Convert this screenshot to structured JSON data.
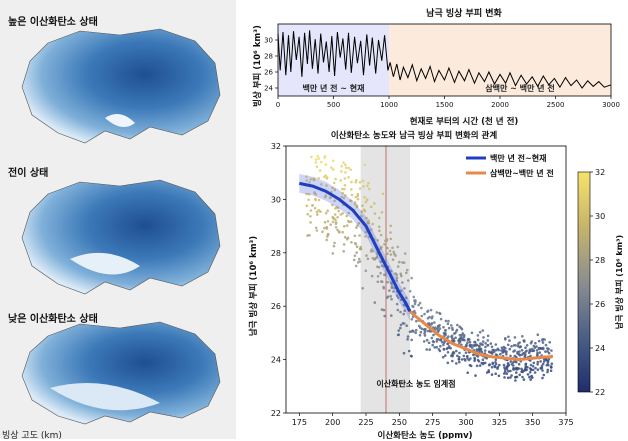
{
  "left_panel": {
    "states": [
      {
        "label": "높은 이산화탄소 상태",
        "ice_fraction": 0.92
      },
      {
        "label": "전이 상태",
        "ice_fraction": 0.84
      },
      {
        "label": "낮은 이산화탄소 상태",
        "ice_fraction": 0.78
      }
    ],
    "bottom_cut_label": "빙상 고도 (km)"
  },
  "top_chart": {
    "chart_data": {
      "type": "line",
      "title": "남극 빙상 부피 변화",
      "xlabel": "현재로 부터의 시간 (천 년 전)",
      "ylabel": "빙상 부피 (10⁶ km³)",
      "xlim": [
        0,
        3000
      ],
      "ylim": [
        23,
        32
      ],
      "xticks": [
        "0",
        "500",
        "1000",
        "1500",
        "2000",
        "2500",
        "3000"
      ],
      "yticks": [
        "24",
        "26",
        "28",
        "30"
      ],
      "regions": [
        {
          "label": "백만 년 전 ~ 현재",
          "x": [
            0,
            1000
          ],
          "color": "#e5e6fb"
        },
        {
          "label": "삼백만 ~ 백만 년 전",
          "x": [
            1000,
            3000
          ],
          "color": "#fcebdc"
        }
      ],
      "x": [
        0,
        20,
        45,
        70,
        95,
        115,
        140,
        165,
        190,
        215,
        240,
        265,
        285,
        310,
        335,
        360,
        385,
        410,
        435,
        460,
        485,
        510,
        535,
        560,
        585,
        610,
        635,
        660,
        690,
        715,
        745,
        770,
        800,
        825,
        850,
        880,
        905,
        935,
        960,
        990,
        1010,
        1040,
        1070,
        1100,
        1130,
        1170,
        1210,
        1250,
        1290,
        1330,
        1370,
        1410,
        1450,
        1500,
        1540,
        1590,
        1630,
        1680,
        1720,
        1770,
        1810,
        1860,
        1900,
        1950,
        2000,
        2050,
        2090,
        2140,
        2190,
        2240,
        2290,
        2340,
        2390,
        2440,
        2490,
        2540,
        2590,
        2640,
        2690,
        2740,
        2790,
        2840,
        2890,
        2940,
        3000
      ],
      "y": [
        30.8,
        26.2,
        31.0,
        25.6,
        30.6,
        26.0,
        31.1,
        27.5,
        30.4,
        25.4,
        30.9,
        27.0,
        31.2,
        26.4,
        30.1,
        25.8,
        30.8,
        27.2,
        29.8,
        26.0,
        30.5,
        25.5,
        31.0,
        27.8,
        30.2,
        26.3,
        30.9,
        25.9,
        30.4,
        27.1,
        29.9,
        25.6,
        30.7,
        26.8,
        30.3,
        25.8,
        30.0,
        27.4,
        30.6,
        26.2,
        27.2,
        25.4,
        27.0,
        25.0,
        26.6,
        25.3,
        26.9,
        24.9,
        26.4,
        25.2,
        26.7,
        24.8,
        26.2,
        25.0,
        26.5,
        24.7,
        26.1,
        24.9,
        26.3,
        24.6,
        25.9,
        24.8,
        26.0,
        24.5,
        25.7,
        24.6,
        25.9,
        24.3,
        25.6,
        24.5,
        25.4,
        24.2,
        25.5,
        24.4,
        25.2,
        24.1,
        25.3,
        24.3,
        25.0,
        24.0,
        24.9,
        24.2,
        24.8,
        24.1,
        24.4
      ]
    }
  },
  "main_chart": {
    "chart_data": {
      "type": "scatter",
      "title": "이산화탄소 농도와 남극 빙상 부피 변화의 관계",
      "xlabel": "이산화탄소 농도 (ppmv)",
      "ylabel": "남극 빙상 부피 (10⁶ km³)",
      "xlim": [
        165,
        375
      ],
      "ylim": [
        22,
        32
      ],
      "xticks": [
        "175",
        "200",
        "225",
        "250",
        "275",
        "300",
        "325",
        "350",
        "375"
      ],
      "yticks": [
        "22",
        "24",
        "26",
        "28",
        "30",
        "32"
      ],
      "grey_band": [
        221,
        258
      ],
      "threshold_x": 240,
      "annotation": "이산화탄소 농도 임계점",
      "legend_position": "top-right",
      "series": [
        {
          "name": "백만 년 전~현재",
          "color": "#1f3fbf",
          "x": [
            175,
            185,
            195,
            205,
            215,
            225,
            235,
            240,
            245,
            250,
            255,
            258
          ],
          "y": [
            30.6,
            30.5,
            30.3,
            30.0,
            29.6,
            29.0,
            28.0,
            27.5,
            27.0,
            26.5,
            26.1,
            25.8
          ]
        },
        {
          "name": "삼백만~백만 년 전",
          "color": "#e8894a",
          "x": [
            258,
            270,
            280,
            290,
            300,
            310,
            320,
            330,
            340,
            350,
            360,
            365
          ],
          "y": [
            25.8,
            25.3,
            24.9,
            24.6,
            24.4,
            24.2,
            24.1,
            24.05,
            24.0,
            24.05,
            24.1,
            24.1
          ]
        }
      ],
      "colorbar": {
        "label": "남극 빙상 부피 (10⁶ km³)",
        "range": [
          22,
          32
        ],
        "ticks": [
          "22",
          "24",
          "26",
          "28",
          "30",
          "32"
        ],
        "colors": [
          "#1f2d6b",
          "#4b5f88",
          "#8a8f8f",
          "#c6b46c",
          "#f5e36b"
        ]
      }
    }
  }
}
